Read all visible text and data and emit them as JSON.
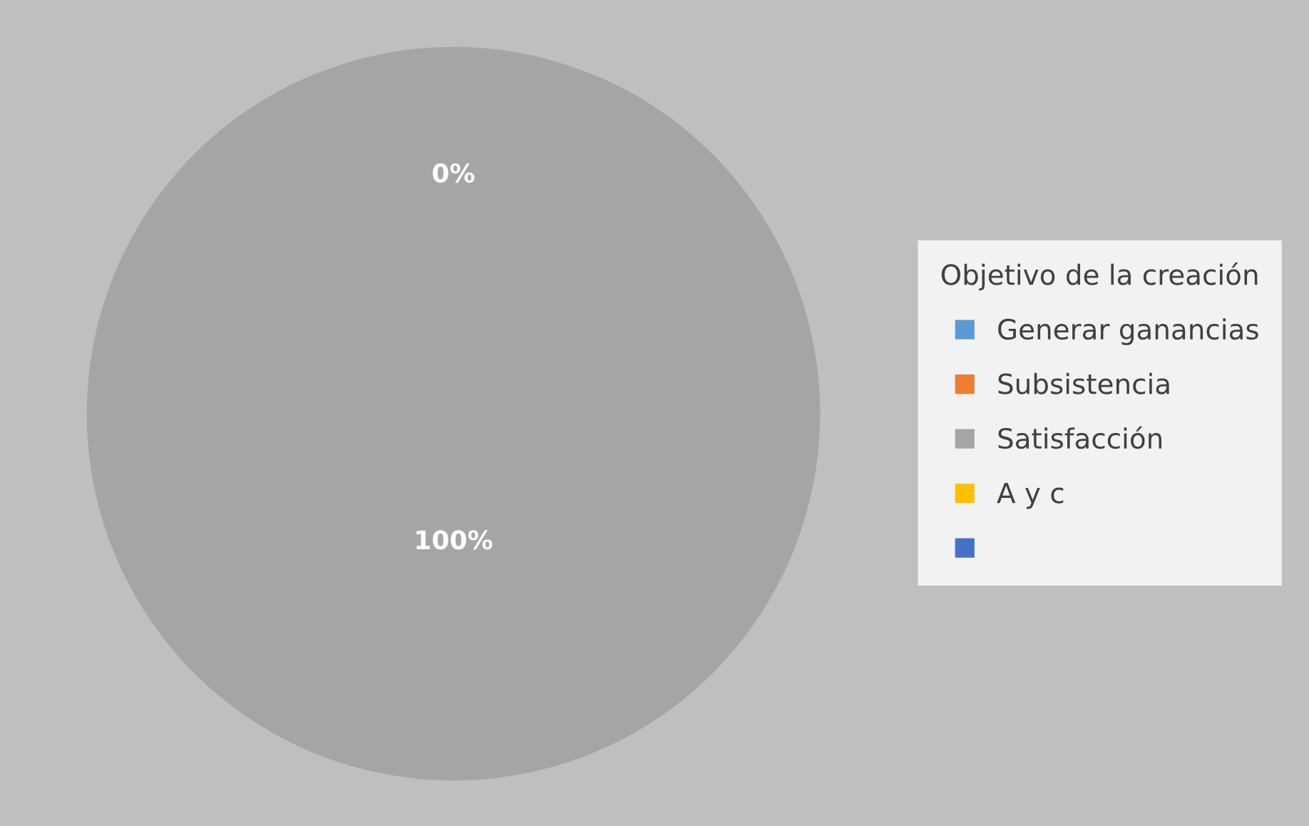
{
  "chart_data": {
    "type": "pie",
    "categories": [
      "Generar ganancias",
      "Subsistencia",
      "Satisfacción",
      "A y c",
      null
    ],
    "values": [
      0,
      0,
      100,
      0,
      0
    ],
    "colors": [
      "#5b9bd5",
      "#ed7d31",
      "#a5a5a5",
      "#ffc000",
      "#4472c4"
    ],
    "value_labels": [
      "0%",
      null,
      "100%",
      null,
      null
    ],
    "legend_title": "Objetivo de la creación",
    "legend": "right"
  }
}
